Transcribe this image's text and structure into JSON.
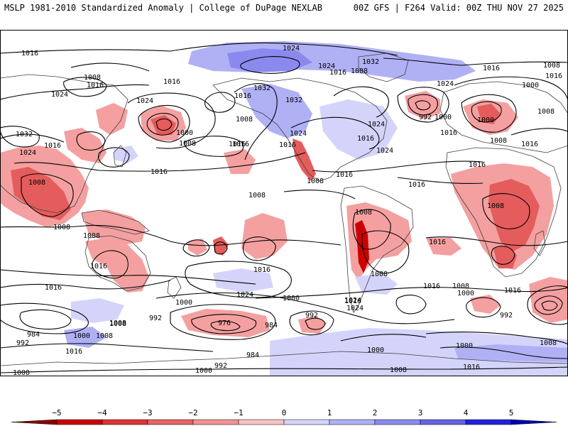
{
  "header": {
    "left_title": "MSLP 1981-2010 Standardized Anomaly | College of DuPage NEXLAB",
    "right_title": "00Z GFS | F264 Valid: 00Z THU NOV 27 2025"
  },
  "isobars": [
    {
      "label": "1016"
    },
    {
      "label": "1008"
    },
    {
      "label": "1016"
    },
    {
      "label": "1024"
    },
    {
      "label": "1024"
    },
    {
      "label": "1016"
    },
    {
      "label": "1000"
    },
    {
      "label": "1008"
    },
    {
      "label": "1032"
    },
    {
      "label": "1016"
    },
    {
      "label": "1024"
    },
    {
      "label": "1008"
    },
    {
      "label": "1008"
    },
    {
      "label": "1016"
    },
    {
      "label": "1016"
    },
    {
      "label": "1024"
    },
    {
      "label": "1032"
    },
    {
      "label": "1024"
    },
    {
      "label": "1016"
    },
    {
      "label": "1008"
    },
    {
      "label": "1032"
    },
    {
      "label": "1032"
    },
    {
      "label": "1016"
    },
    {
      "label": "1008"
    },
    {
      "label": "1016"
    },
    {
      "label": "1024"
    },
    {
      "label": "1016"
    },
    {
      "label": "1016"
    },
    {
      "label": "1024"
    },
    {
      "label": "992"
    },
    {
      "label": "1000"
    },
    {
      "label": "1016"
    },
    {
      "label": "1024"
    },
    {
      "label": "1016"
    },
    {
      "label": "1008"
    },
    {
      "label": "1016"
    },
    {
      "label": "1000"
    },
    {
      "label": "1008"
    },
    {
      "label": "1008"
    },
    {
      "label": "1016"
    },
    {
      "label": "1024"
    },
    {
      "label": "1016"
    },
    {
      "label": "1000"
    },
    {
      "label": "1008"
    },
    {
      "label": "1016"
    },
    {
      "label": "1016"
    },
    {
      "label": "1008"
    },
    {
      "label": "1008"
    },
    {
      "label": "1008"
    },
    {
      "label": "1008"
    },
    {
      "label": "1016"
    },
    {
      "label": "1016"
    },
    {
      "label": "1016"
    },
    {
      "label": "1024"
    },
    {
      "label": "1008"
    },
    {
      "label": "1024"
    },
    {
      "label": "1016"
    },
    {
      "label": "1008"
    },
    {
      "label": "1000"
    },
    {
      "label": "1016"
    },
    {
      "label": "1016"
    },
    {
      "label": "1000"
    },
    {
      "label": "1000"
    },
    {
      "label": "992"
    },
    {
      "label": "976"
    },
    {
      "label": "984"
    },
    {
      "label": "992"
    },
    {
      "label": "1024"
    },
    {
      "label": "1016"
    },
    {
      "label": "1008"
    },
    {
      "label": "992"
    },
    {
      "label": "1008"
    },
    {
      "label": "1000"
    },
    {
      "label": "1008"
    },
    {
      "label": "984"
    },
    {
      "label": "992"
    },
    {
      "label": "1016"
    },
    {
      "label": "984"
    },
    {
      "label": "1000"
    },
    {
      "label": "992"
    },
    {
      "label": "1008"
    },
    {
      "label": "1008"
    },
    {
      "label": "1000"
    },
    {
      "label": "1008"
    },
    {
      "label": "1000"
    },
    {
      "label": "1016"
    },
    {
      "label": "1008"
    },
    {
      "label": "1016"
    }
  ],
  "colorbar": {
    "ticks": [
      "−5",
      "−4",
      "−3",
      "−2",
      "−1",
      "0",
      "1",
      "2",
      "3",
      "4",
      "5"
    ],
    "colors": [
      "#cc0000",
      "#dd3333",
      "#e86464",
      "#f39292",
      "#f9c2c2",
      "#ffffff",
      "#d4d4fb",
      "#b0b0f5",
      "#8a8aee",
      "#6464e4",
      "#2222dd"
    ],
    "min_color": "#8a0000",
    "max_color": "#0000aa"
  }
}
